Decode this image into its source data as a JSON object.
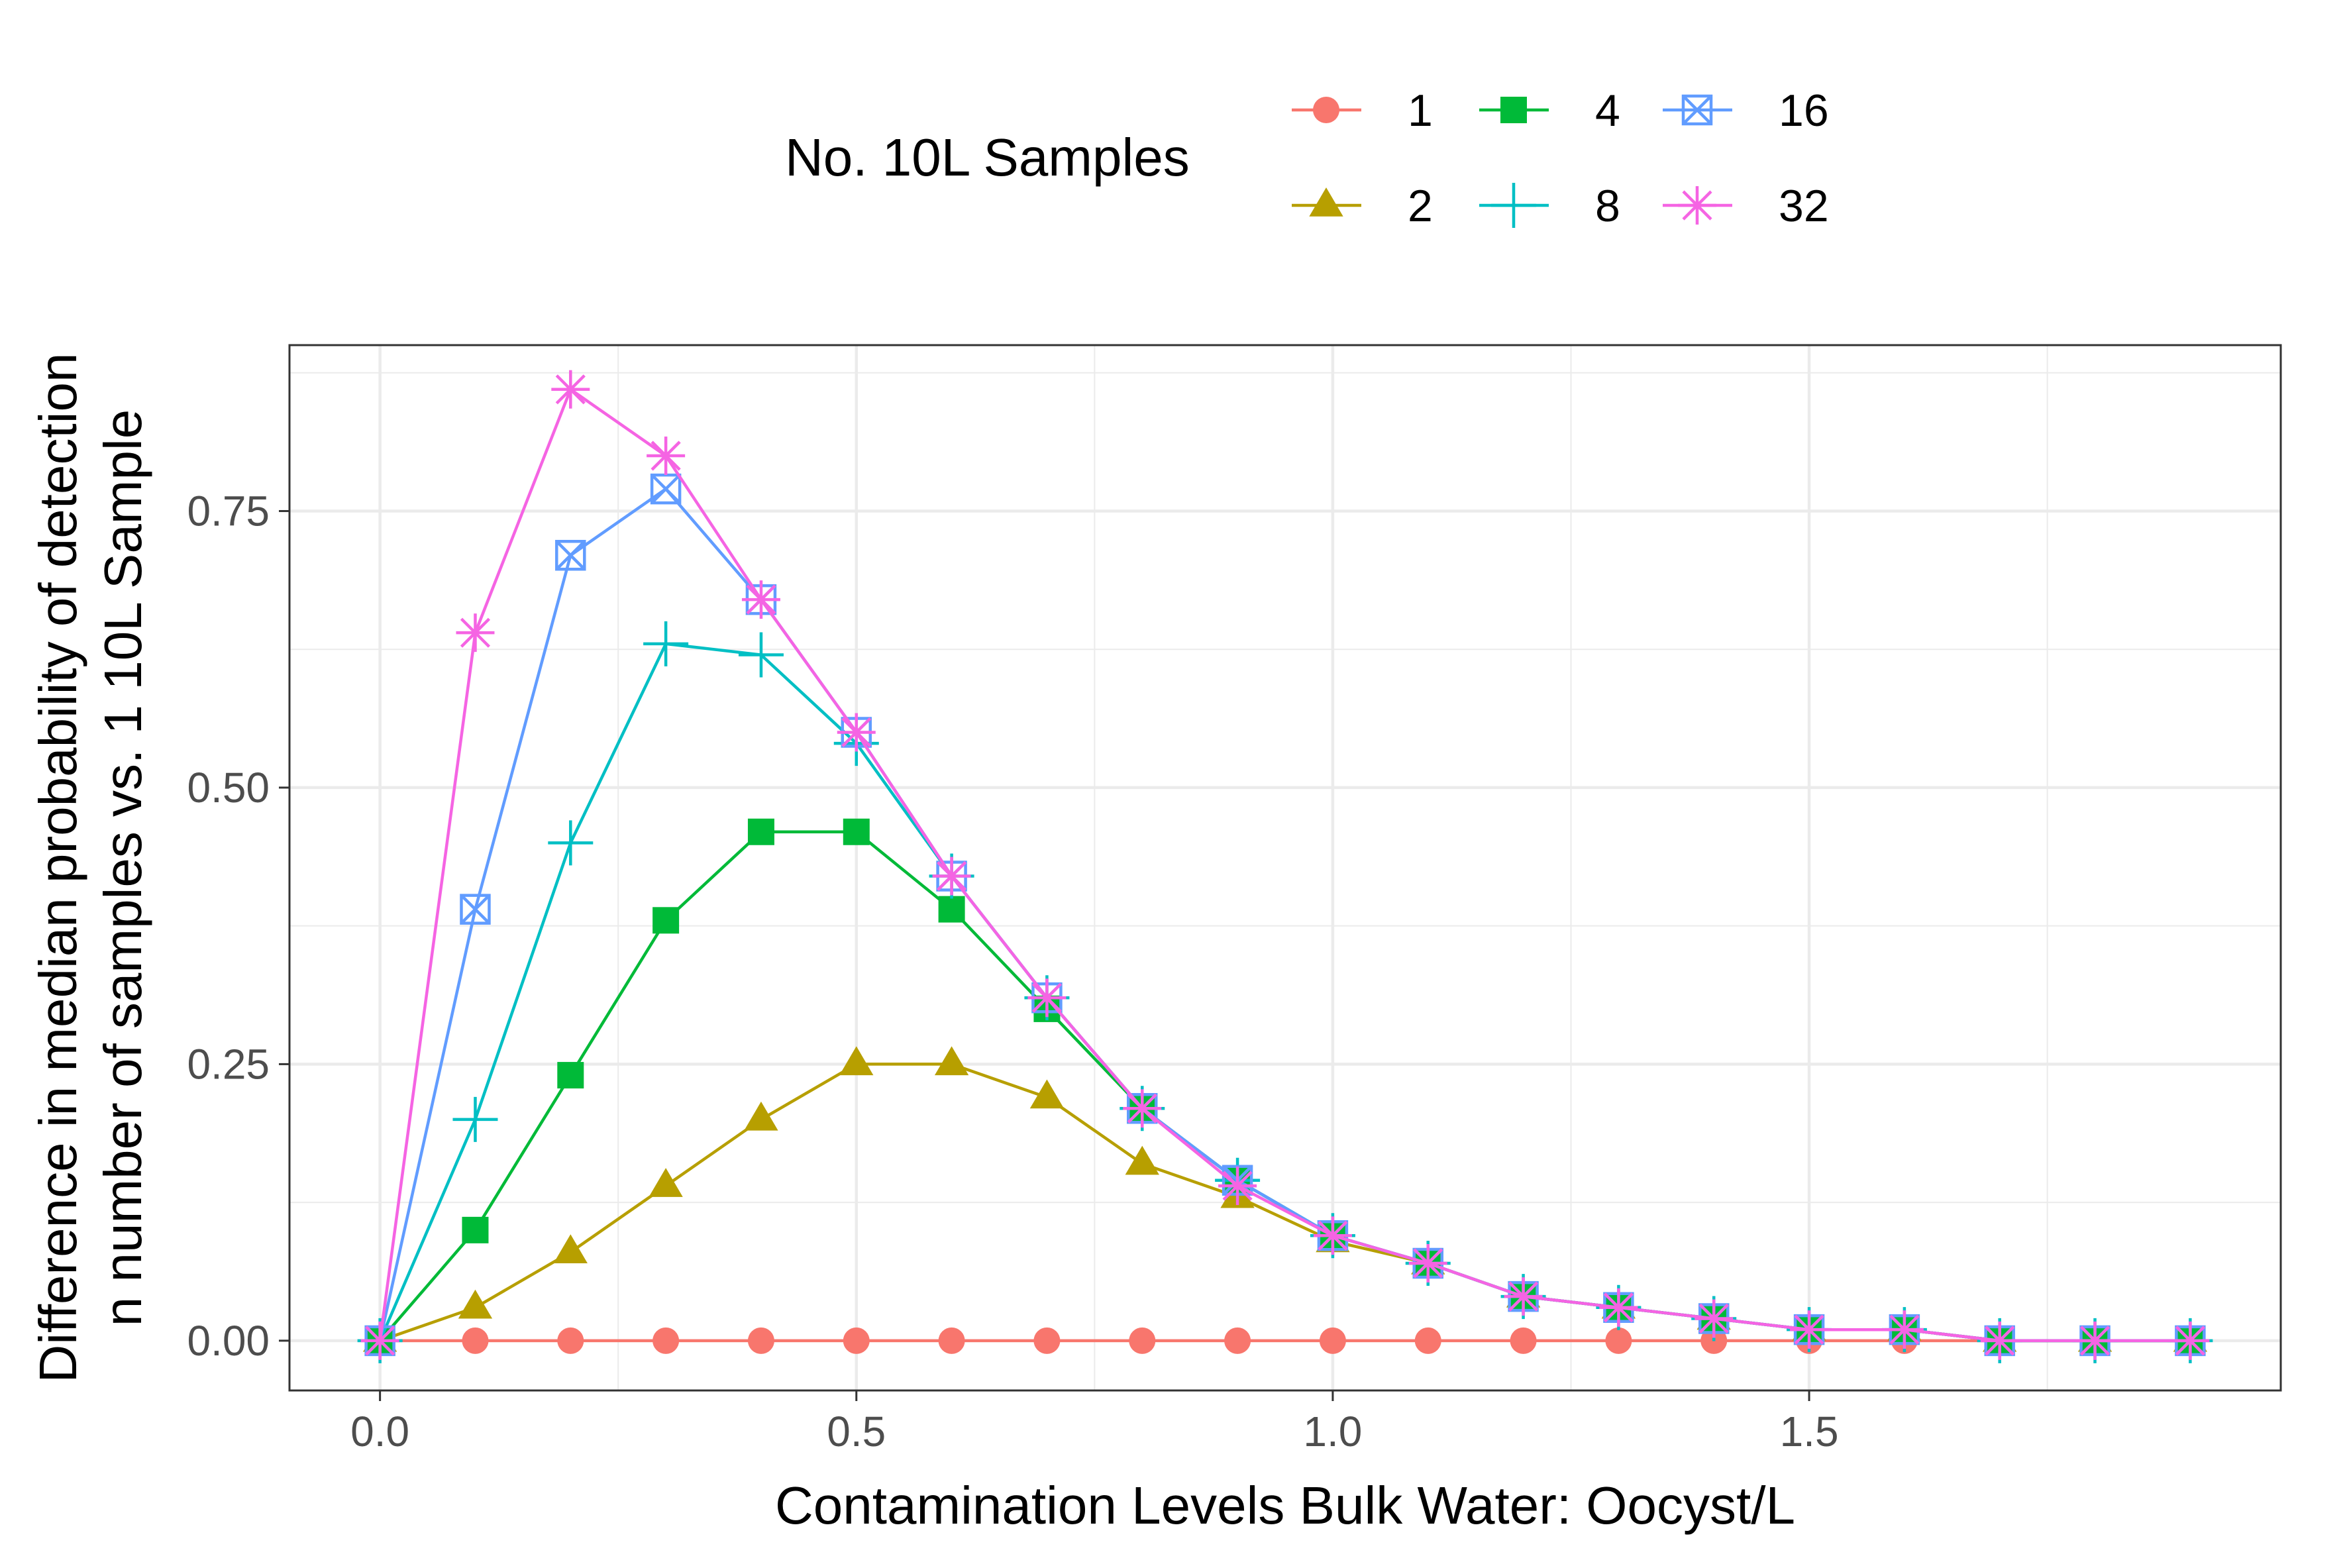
{
  "chart_data": {
    "type": "line",
    "title": "",
    "xlabel": "Contamination Levels Bulk Water: Oocyst/L",
    "ylabel_lines": [
      "Difference in median probability of detection",
      "n number of samples vs. 1 10L Sample"
    ],
    "x": [
      0.0,
      0.1,
      0.2,
      0.3,
      0.4,
      0.5,
      0.6,
      0.7,
      0.8,
      0.9,
      1.0,
      1.1,
      1.2,
      1.3,
      1.4,
      1.5,
      1.6,
      1.7,
      1.8,
      1.9
    ],
    "xlim": [
      -0.095,
      1.995
    ],
    "ylim": [
      -0.045,
      0.9
    ],
    "x_ticks": [
      {
        "value": 0.0,
        "label": "0.0"
      },
      {
        "value": 0.5,
        "label": "0.5"
      },
      {
        "value": 1.0,
        "label": "1.0"
      },
      {
        "value": 1.5,
        "label": "1.5"
      }
    ],
    "x_minor_ticks": [
      0.25,
      0.75,
      1.25,
      1.75
    ],
    "y_ticks": [
      {
        "value": 0.0,
        "label": "0.00"
      },
      {
        "value": 0.25,
        "label": "0.25"
      },
      {
        "value": 0.5,
        "label": "0.50"
      },
      {
        "value": 0.75,
        "label": "0.75"
      }
    ],
    "y_minor_ticks": [
      0.125,
      0.375,
      0.625,
      0.875
    ],
    "grid": true,
    "legend": {
      "title": "No. 10L Samples",
      "position": "top"
    },
    "series": [
      {
        "name": "1",
        "color": "#F8766D",
        "marker": "circle",
        "values": [
          0,
          0,
          0,
          0,
          0,
          0,
          0,
          0,
          0,
          0,
          0,
          0,
          0,
          0,
          0,
          0,
          0,
          0,
          0,
          0
        ]
      },
      {
        "name": "2",
        "color": "#B79F00",
        "marker": "triangle",
        "values": [
          0,
          0.03,
          0.08,
          0.14,
          0.2,
          0.25,
          0.25,
          0.22,
          0.16,
          0.13,
          0.09,
          0.07,
          0.04,
          0.03,
          0.02,
          0.01,
          0.01,
          0,
          0,
          0
        ]
      },
      {
        "name": "4",
        "color": "#00BA38",
        "marker": "square",
        "values": [
          0,
          0.1,
          0.24,
          0.38,
          0.46,
          0.46,
          0.39,
          0.3,
          0.21,
          0.145,
          0.095,
          0.07,
          0.04,
          0.03,
          0.02,
          0.01,
          0.01,
          0,
          0,
          0
        ]
      },
      {
        "name": "8",
        "color": "#00BFC4",
        "marker": "plus",
        "values": [
          0,
          0.2,
          0.45,
          0.63,
          0.62,
          0.54,
          0.42,
          0.31,
          0.21,
          0.145,
          0.095,
          0.07,
          0.04,
          0.03,
          0.02,
          0.01,
          0.01,
          0,
          0,
          0
        ]
      },
      {
        "name": "16",
        "color": "#619CFF",
        "marker": "square-x",
        "values": [
          0,
          0.39,
          0.71,
          0.77,
          0.67,
          0.55,
          0.42,
          0.31,
          0.21,
          0.145,
          0.095,
          0.07,
          0.04,
          0.03,
          0.02,
          0.01,
          0.01,
          0,
          0,
          0
        ]
      },
      {
        "name": "32",
        "color": "#F564E3",
        "marker": "asterisk",
        "values": [
          0,
          0.64,
          0.86,
          0.8,
          0.67,
          0.55,
          0.42,
          0.31,
          0.21,
          0.14,
          0.095,
          0.07,
          0.04,
          0.03,
          0.02,
          0.01,
          0.01,
          0,
          0,
          0
        ]
      }
    ]
  }
}
